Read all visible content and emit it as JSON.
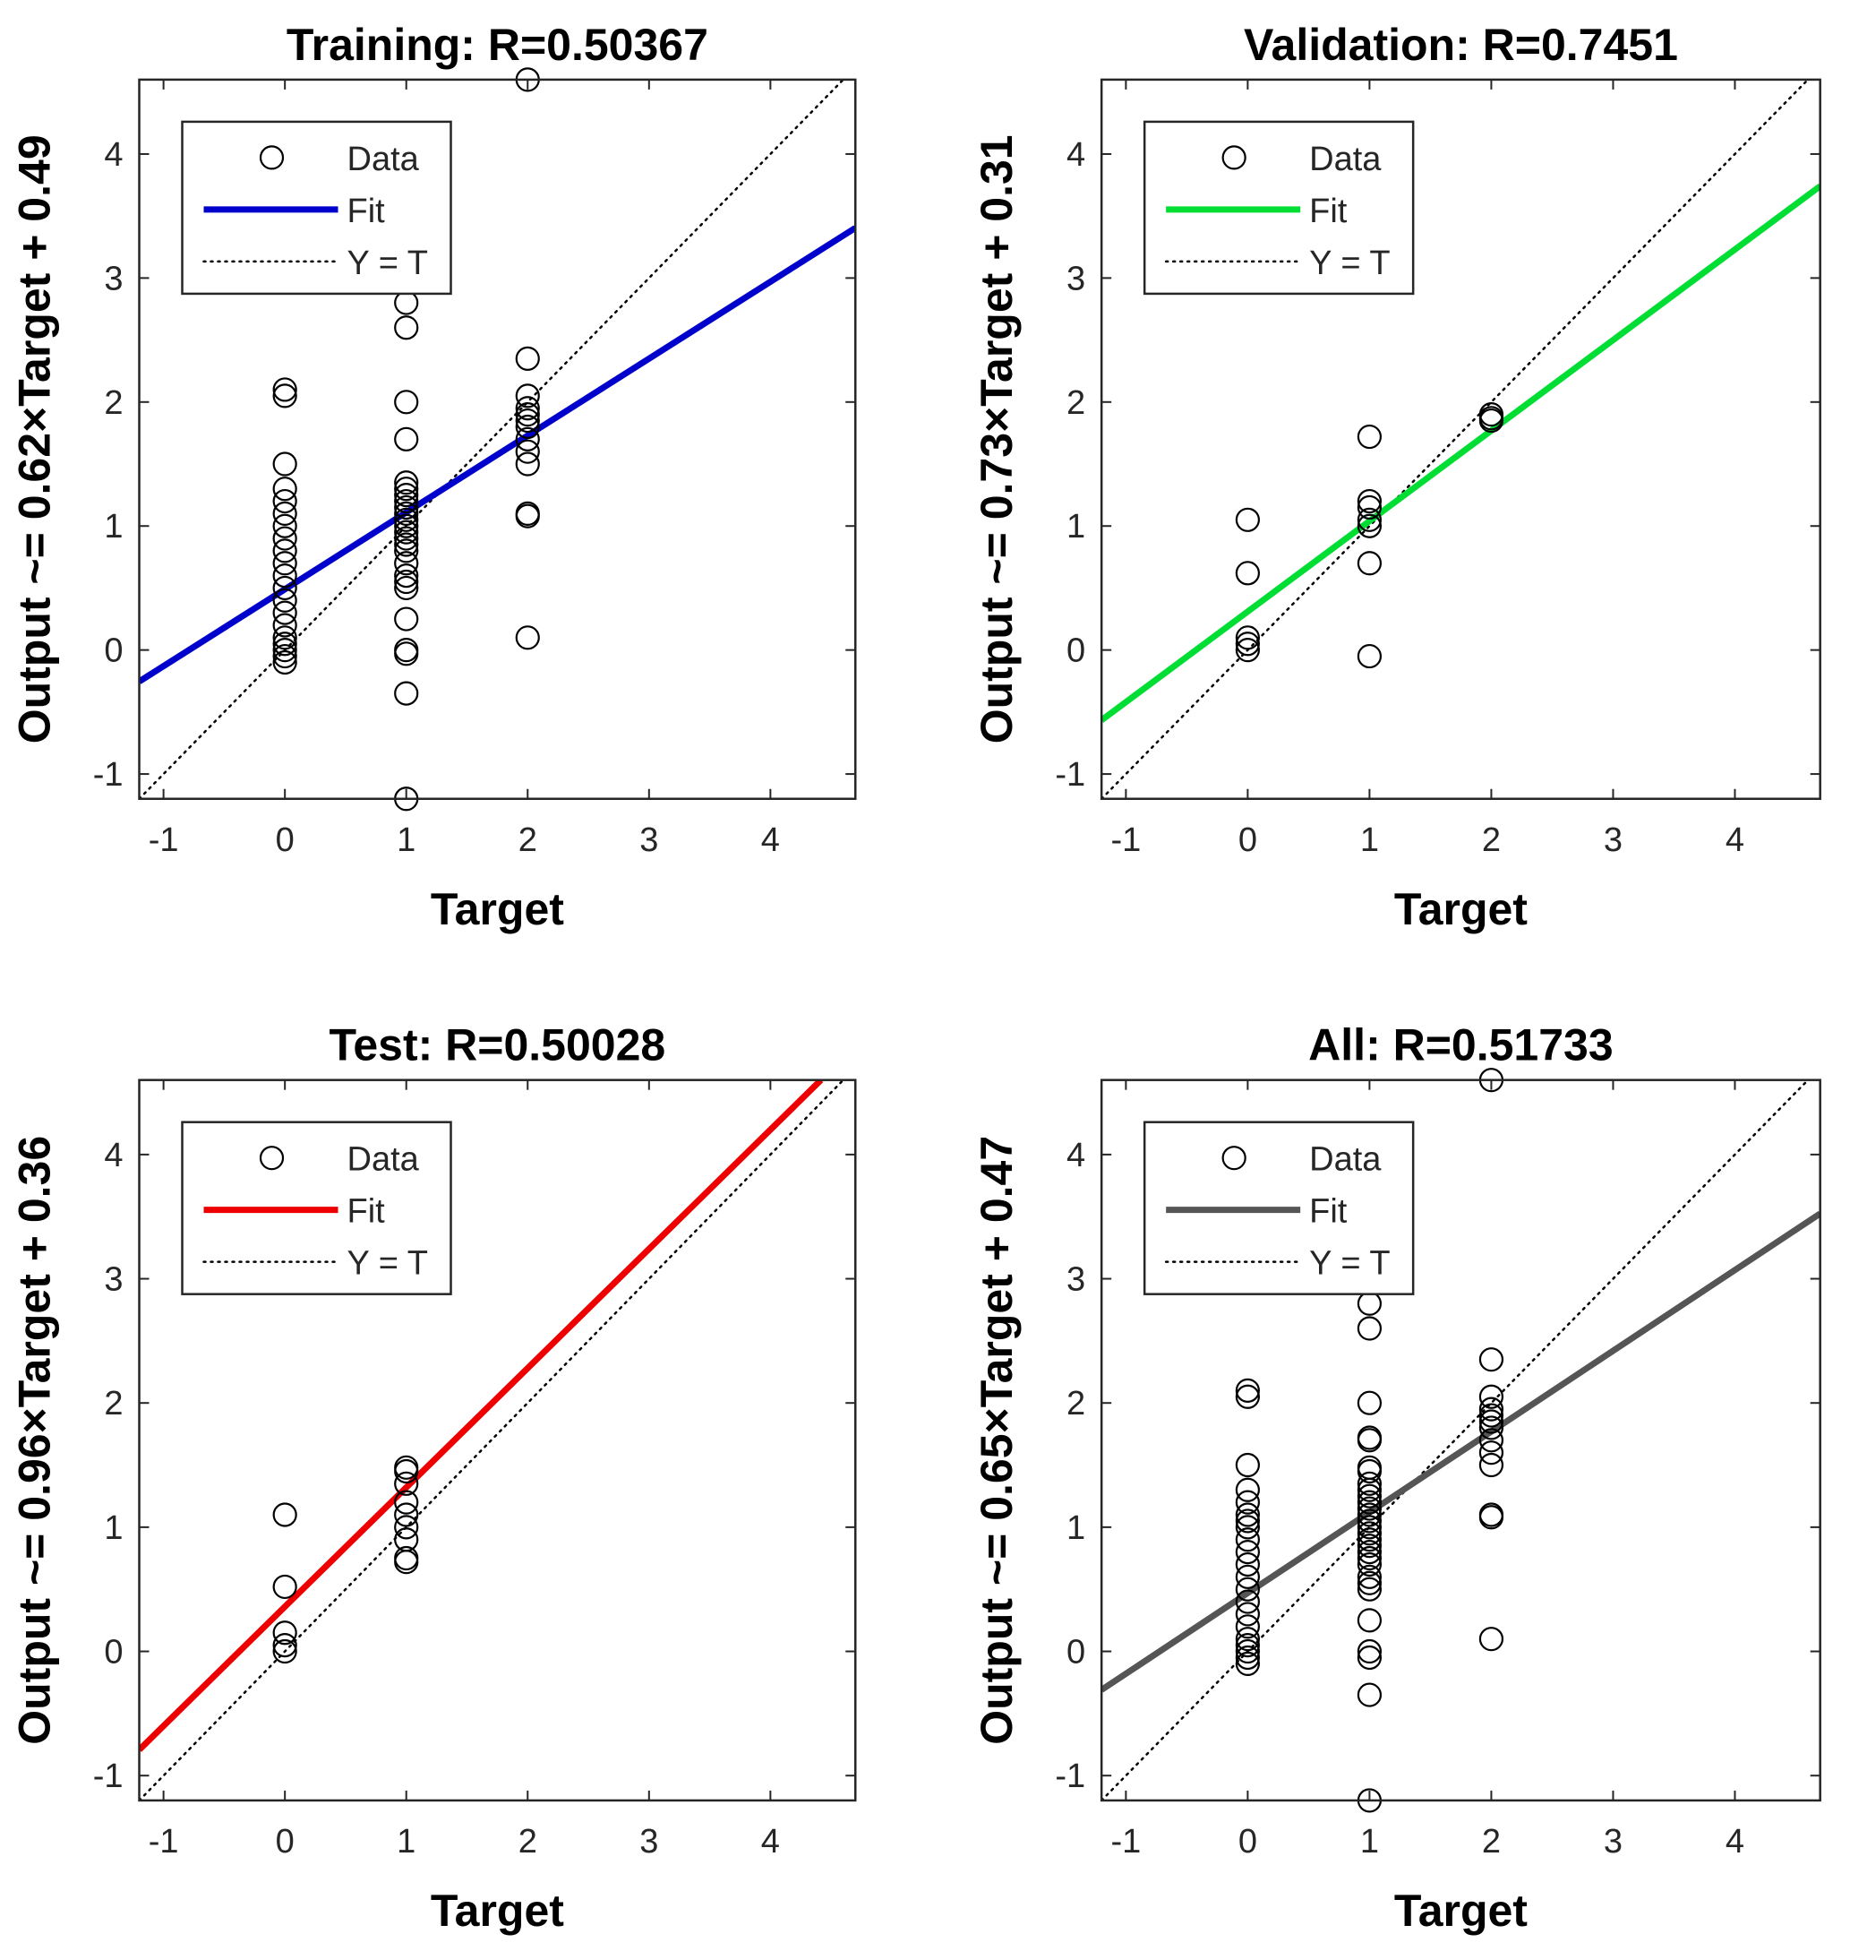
{
  "chart_data": [
    {
      "type": "scatter",
      "title": "Training: R=0.50367",
      "xlabel": "Target",
      "ylabel": "Output ~= 0.62×Target + 0.49",
      "xlim": [
        -1.2,
        4.7
      ],
      "ylim": [
        -1.2,
        4.6
      ],
      "xticks": [
        "-1",
        "0",
        "1",
        "2",
        "3",
        "4"
      ],
      "yticks": [
        "-1",
        "0",
        "1",
        "2",
        "3",
        "4"
      ],
      "fit": {
        "slope": 0.62,
        "intercept": 0.49,
        "color": "#0000cc"
      },
      "legend": {
        "data": "Data",
        "fit": "Fit",
        "identity": "Y = T",
        "placement": "top-left"
      },
      "points": [
        [
          0,
          2.1
        ],
        [
          0,
          2.05
        ],
        [
          0,
          1.5
        ],
        [
          0,
          1.3
        ],
        [
          0,
          1.2
        ],
        [
          0,
          1.1
        ],
        [
          0,
          1.0
        ],
        [
          0,
          0.9
        ],
        [
          0,
          0.8
        ],
        [
          0,
          0.7
        ],
        [
          0,
          0.6
        ],
        [
          0,
          0.5
        ],
        [
          0,
          0.4
        ],
        [
          0,
          0.3
        ],
        [
          0,
          0.2
        ],
        [
          0,
          0.1
        ],
        [
          0,
          0.05
        ],
        [
          0,
          0.0
        ],
        [
          0,
          -0.05
        ],
        [
          0,
          -0.1
        ],
        [
          1,
          2.8
        ],
        [
          1,
          2.6
        ],
        [
          1,
          2.0
        ],
        [
          1,
          1.7
        ],
        [
          1,
          1.35
        ],
        [
          1,
          1.3
        ],
        [
          1,
          1.25
        ],
        [
          1,
          1.2
        ],
        [
          1,
          1.15
        ],
        [
          1,
          1.1
        ],
        [
          1,
          1.05
        ],
        [
          1,
          1.0
        ],
        [
          1,
          0.95
        ],
        [
          1,
          0.9
        ],
        [
          1,
          0.85
        ],
        [
          1,
          0.8
        ],
        [
          1,
          0.7
        ],
        [
          1,
          0.6
        ],
        [
          1,
          0.55
        ],
        [
          1,
          0.5
        ],
        [
          1,
          0.25
        ],
        [
          1,
          0.0
        ],
        [
          1,
          -0.03
        ],
        [
          1,
          -0.35
        ],
        [
          1,
          -1.2
        ],
        [
          2,
          4.6
        ],
        [
          2,
          2.35
        ],
        [
          2,
          2.05
        ],
        [
          2,
          1.95
        ],
        [
          2,
          1.9
        ],
        [
          2,
          1.85
        ],
        [
          2,
          1.8
        ],
        [
          2,
          1.7
        ],
        [
          2,
          1.6
        ],
        [
          2,
          1.5
        ],
        [
          2,
          1.1
        ],
        [
          2,
          1.08
        ],
        [
          2,
          0.1
        ]
      ]
    },
    {
      "type": "scatter",
      "title": "Validation: R=0.7451",
      "xlabel": "Target",
      "ylabel": "Output ~= 0.73×Target + 0.31",
      "xlim": [
        -1.2,
        4.7
      ],
      "ylim": [
        -1.2,
        4.6
      ],
      "xticks": [
        "-1",
        "0",
        "1",
        "2",
        "3",
        "4"
      ],
      "yticks": [
        "-1",
        "0",
        "1",
        "2",
        "3",
        "4"
      ],
      "fit": {
        "slope": 0.73,
        "intercept": 0.31,
        "color": "#00dd33"
      },
      "legend": {
        "data": "Data",
        "fit": "Fit",
        "identity": "Y = T",
        "placement": "top-left"
      },
      "points": [
        [
          0,
          1.05
        ],
        [
          0,
          0.62
        ],
        [
          0,
          0.1
        ],
        [
          0,
          0.05
        ],
        [
          0,
          0.0
        ],
        [
          1,
          1.72
        ],
        [
          1,
          1.2
        ],
        [
          1,
          1.15
        ],
        [
          1,
          1.05
        ],
        [
          1,
          1.0
        ],
        [
          1,
          0.7
        ],
        [
          1,
          -0.05
        ],
        [
          2,
          1.9
        ],
        [
          2,
          1.87
        ],
        [
          2,
          1.85
        ]
      ]
    },
    {
      "type": "scatter",
      "title": "Test: R=0.50028",
      "xlabel": "Target",
      "ylabel": "Output ~= 0.96×Target + 0.36",
      "xlim": [
        -1.2,
        4.7
      ],
      "ylim": [
        -1.2,
        4.6
      ],
      "xticks": [
        "-1",
        "0",
        "1",
        "2",
        "3",
        "4"
      ],
      "yticks": [
        "-1",
        "0",
        "1",
        "2",
        "3",
        "4"
      ],
      "fit": {
        "slope": 0.96,
        "intercept": 0.36,
        "color": "#ee0000"
      },
      "legend": {
        "data": "Data",
        "fit": "Fit",
        "identity": "Y = T",
        "placement": "top-left"
      },
      "points": [
        [
          0,
          1.1
        ],
        [
          0,
          0.52
        ],
        [
          0,
          0.15
        ],
        [
          0,
          0.05
        ],
        [
          0,
          0.0
        ],
        [
          1,
          1.48
        ],
        [
          1,
          1.45
        ],
        [
          1,
          1.35
        ],
        [
          1,
          1.2
        ],
        [
          1,
          1.1
        ],
        [
          1,
          1.0
        ],
        [
          1,
          0.9
        ],
        [
          1,
          0.75
        ],
        [
          1,
          0.72
        ]
      ]
    },
    {
      "type": "scatter",
      "title": "All: R=0.51733",
      "xlabel": "Target",
      "ylabel": "Output ~= 0.65×Target + 0.47",
      "xlim": [
        -1.2,
        4.7
      ],
      "ylim": [
        -1.2,
        4.6
      ],
      "xticks": [
        "-1",
        "0",
        "1",
        "2",
        "3",
        "4"
      ],
      "yticks": [
        "-1",
        "0",
        "1",
        "2",
        "3",
        "4"
      ],
      "fit": {
        "slope": 0.65,
        "intercept": 0.47,
        "color": "#555555"
      },
      "legend": {
        "data": "Data",
        "fit": "Fit",
        "identity": "Y = T",
        "placement": "top-left"
      },
      "points": [
        [
          0,
          2.1
        ],
        [
          0,
          2.05
        ],
        [
          0,
          1.5
        ],
        [
          0,
          1.3
        ],
        [
          0,
          1.2
        ],
        [
          0,
          1.1
        ],
        [
          0,
          1.05
        ],
        [
          0,
          1.0
        ],
        [
          0,
          0.9
        ],
        [
          0,
          0.8
        ],
        [
          0,
          0.7
        ],
        [
          0,
          0.6
        ],
        [
          0,
          0.5
        ],
        [
          0,
          0.4
        ],
        [
          0,
          0.3
        ],
        [
          0,
          0.2
        ],
        [
          0,
          0.1
        ],
        [
          0,
          0.05
        ],
        [
          0,
          0.0
        ],
        [
          0,
          -0.05
        ],
        [
          0,
          -0.1
        ],
        [
          1,
          2.8
        ],
        [
          1,
          2.6
        ],
        [
          1,
          2.0
        ],
        [
          1,
          1.72
        ],
        [
          1,
          1.7
        ],
        [
          1,
          1.48
        ],
        [
          1,
          1.45
        ],
        [
          1,
          1.35
        ],
        [
          1,
          1.3
        ],
        [
          1,
          1.25
        ],
        [
          1,
          1.2
        ],
        [
          1,
          1.15
        ],
        [
          1,
          1.1
        ],
        [
          1,
          1.05
        ],
        [
          1,
          1.0
        ],
        [
          1,
          0.95
        ],
        [
          1,
          0.9
        ],
        [
          1,
          0.85
        ],
        [
          1,
          0.8
        ],
        [
          1,
          0.75
        ],
        [
          1,
          0.7
        ],
        [
          1,
          0.6
        ],
        [
          1,
          0.55
        ],
        [
          1,
          0.5
        ],
        [
          1,
          0.25
        ],
        [
          1,
          0.0
        ],
        [
          1,
          -0.05
        ],
        [
          1,
          -0.35
        ],
        [
          1,
          -1.2
        ],
        [
          2,
          4.6
        ],
        [
          2,
          2.35
        ],
        [
          2,
          2.05
        ],
        [
          2,
          1.95
        ],
        [
          2,
          1.9
        ],
        [
          2,
          1.85
        ],
        [
          2,
          1.8
        ],
        [
          2,
          1.7
        ],
        [
          2,
          1.6
        ],
        [
          2,
          1.5
        ],
        [
          2,
          1.1
        ],
        [
          2,
          1.08
        ],
        [
          2,
          0.1
        ]
      ]
    }
  ]
}
